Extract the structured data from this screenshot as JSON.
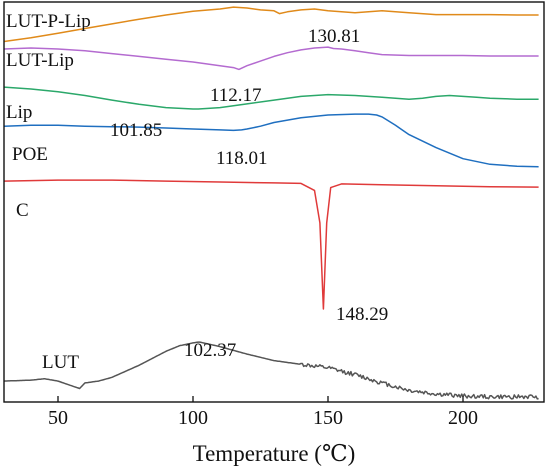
{
  "chart_data": {
    "type": "line",
    "title": "",
    "xlabel": "Temperature (℃)",
    "ylabel": "",
    "xlim": [
      30,
      230
    ],
    "xticks": [
      50,
      100,
      150,
      200
    ],
    "grid": false,
    "legend": "none",
    "series": [
      {
        "name": "LUT-P-Lip",
        "color": "#E08A1A",
        "x": [
          30,
          40,
          50,
          60,
          70,
          80,
          90,
          100,
          110,
          115,
          120,
          125,
          130,
          132,
          135,
          140,
          145,
          150,
          155,
          160,
          165,
          170,
          175,
          180,
          190,
          200,
          210,
          220,
          228
        ],
        "y": [
          4.0,
          4.08,
          4.18,
          4.28,
          4.38,
          4.48,
          4.57,
          4.65,
          4.7,
          4.74,
          4.72,
          4.68,
          4.66,
          4.6,
          4.64,
          4.68,
          4.7,
          4.66,
          4.64,
          4.62,
          4.64,
          4.66,
          4.64,
          4.62,
          4.58,
          4.58,
          4.58,
          4.57,
          4.57
        ],
        "peak": {
          "x": 130.81,
          "label": "130.81"
        }
      },
      {
        "name": "LUT-Lip",
        "color": "#B46BD0",
        "x": [
          30,
          40,
          50,
          60,
          70,
          80,
          90,
          100,
          105,
          110,
          115,
          117,
          120,
          125,
          130,
          135,
          140,
          145,
          150,
          152,
          155,
          160,
          165,
          170,
          180,
          190,
          200,
          210,
          220,
          228
        ],
        "y": [
          3.84,
          3.86,
          3.84,
          3.8,
          3.74,
          3.68,
          3.62,
          3.56,
          3.52,
          3.48,
          3.44,
          3.4,
          3.48,
          3.58,
          3.68,
          3.76,
          3.82,
          3.86,
          3.88,
          3.85,
          3.84,
          3.8,
          3.76,
          3.72,
          3.7,
          3.7,
          3.7,
          3.69,
          3.69,
          3.69
        ],
        "peak": {
          "x": 112.17,
          "label": "112.17"
        }
      },
      {
        "name": "Lip",
        "color": "#2BA86A",
        "x": [
          30,
          40,
          50,
          60,
          70,
          80,
          90,
          100,
          102,
          110,
          120,
          130,
          140,
          150,
          160,
          170,
          180,
          185,
          190,
          195,
          200,
          205,
          210,
          220,
          228
        ],
        "y": [
          3.02,
          2.98,
          2.92,
          2.84,
          2.74,
          2.65,
          2.58,
          2.55,
          2.55,
          2.58,
          2.66,
          2.74,
          2.82,
          2.86,
          2.84,
          2.8,
          2.76,
          2.78,
          2.82,
          2.84,
          2.82,
          2.8,
          2.78,
          2.76,
          2.76
        ],
        "peak": {
          "x": 101.85,
          "label": "101.85"
        }
      },
      {
        "name": "POE",
        "color": "#1F6FC0",
        "x": [
          30,
          40,
          50,
          60,
          70,
          80,
          90,
          100,
          110,
          115,
          118,
          120,
          125,
          130,
          140,
          150,
          160,
          165,
          168,
          170,
          175,
          180,
          190,
          200,
          210,
          220,
          228
        ],
        "y": [
          2.18,
          2.2,
          2.2,
          2.18,
          2.17,
          2.16,
          2.14,
          2.12,
          2.1,
          2.09,
          2.1,
          2.12,
          2.18,
          2.26,
          2.36,
          2.42,
          2.44,
          2.44,
          2.42,
          2.38,
          2.2,
          2.0,
          1.72,
          1.48,
          1.36,
          1.32,
          1.31
        ],
        "peak": {
          "x": 118.01,
          "label": "118.01"
        }
      },
      {
        "name": "C",
        "color": "#E03A3A",
        "x": [
          30,
          50,
          70,
          90,
          110,
          130,
          140,
          145,
          147,
          148.29,
          149.5,
          151,
          155,
          170,
          190,
          210,
          228
        ],
        "y": [
          1.0,
          1.02,
          1.02,
          1.0,
          0.98,
          0.96,
          0.95,
          0.8,
          0.1,
          -1.75,
          0.1,
          0.86,
          0.94,
          0.92,
          0.9,
          0.88,
          0.87
        ],
        "peak": {
          "x": 148.29,
          "label": "148.29"
        }
      },
      {
        "name": "LUT",
        "color": "#555555",
        "x": [
          30,
          40,
          45,
          50,
          55,
          58,
          60,
          65,
          70,
          80,
          90,
          95,
          100,
          102.37,
          110,
          120,
          130,
          140,
          150,
          160,
          170,
          180,
          190,
          200,
          210,
          220,
          228
        ],
        "y": [
          -3.3,
          -3.28,
          -3.25,
          -3.3,
          -3.4,
          -3.46,
          -3.34,
          -3.3,
          -3.22,
          -2.96,
          -2.66,
          -2.54,
          -2.48,
          -2.46,
          -2.56,
          -2.72,
          -2.86,
          -2.94,
          -3.02,
          -3.16,
          -3.34,
          -3.5,
          -3.58,
          -3.62,
          -3.64,
          -3.64,
          -3.64
        ],
        "noise_from_x": 140,
        "peak": {
          "x": 102.37,
          "label": "102.37"
        }
      }
    ],
    "annotations": [
      {
        "text": "LUT-P-Lip"
      },
      {
        "text": "LUT-Lip"
      },
      {
        "text": "Lip"
      },
      {
        "text": "POE"
      },
      {
        "text": "C"
      },
      {
        "text": "LUT"
      },
      {
        "text": "130.81"
      },
      {
        "text": "112.17"
      },
      {
        "text": "101.85"
      },
      {
        "text": "118.01"
      },
      {
        "text": "148.29"
      },
      {
        "text": "102.37"
      }
    ]
  }
}
